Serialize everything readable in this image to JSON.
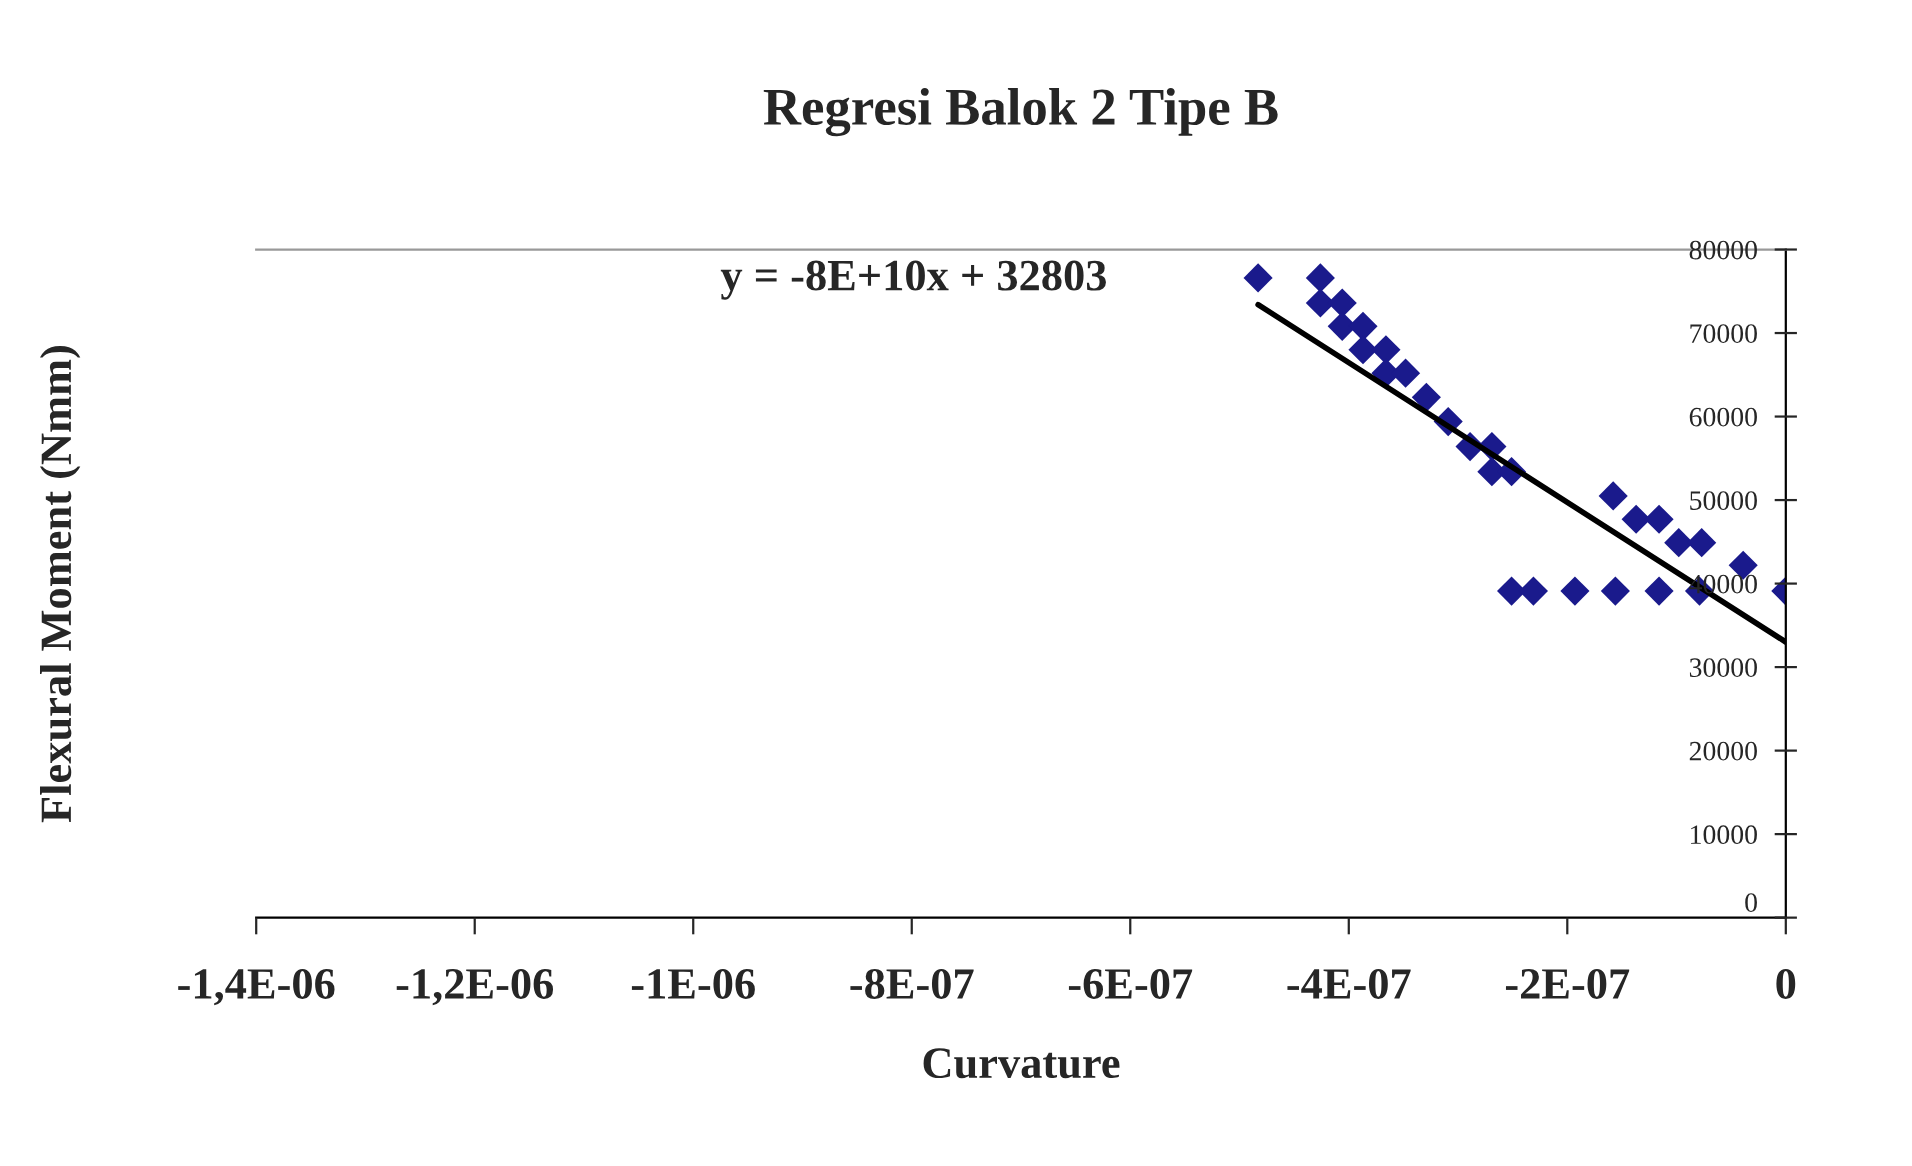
{
  "chart_data": {
    "type": "scatter",
    "title": "Regresi Balok 2 Tipe B",
    "xlabel": "Curvature",
    "ylabel": "Flexural Moment (Nmm)",
    "annotations": [
      "y = -8E+10x + 32803"
    ],
    "series": [
      {
        "color": "#1a1a8c",
        "marker": "diamond",
        "x": [
          -4.83e-07,
          -4.26e-07,
          -4.26e-07,
          -4.06e-07,
          -4.06e-07,
          -3.87e-07,
          -3.87e-07,
          -3.66e-07,
          -3.66e-07,
          -3.48e-07,
          -3.29e-07,
          -3.09e-07,
          -2.89e-07,
          -2.69e-07,
          -2.69e-07,
          -2.51e-07,
          -1.58e-07,
          -1.37e-07,
          -1.16e-07,
          -9.8e-08,
          -7.7e-08,
          -3.9e-08,
          -2.51e-07,
          -2.31e-07,
          -1.93e-07,
          -1.56e-07,
          -1.16e-07,
          -7.9e-08,
          0
        ],
        "values": [
          76600,
          76600,
          73600,
          73600,
          70800,
          70800,
          68000,
          68000,
          65200,
          65200,
          62300,
          59400,
          56400,
          56400,
          53400,
          53400,
          50500,
          47700,
          47700,
          44900,
          44900,
          42200,
          39100,
          39100,
          39100,
          39100,
          39100,
          39100,
          39100
        ]
      },
      {
        "type": "line",
        "color": "#000000",
        "line_style": "solid",
        "marker": "none",
        "x": [
          -4.83e-07,
          0
        ],
        "values": [
          73400,
          33000
        ]
      }
    ],
    "xlim": [
      -1.4e-06,
      0
    ],
    "xticks": [
      {
        "value": -1.4e-06,
        "label": "-1,4E-06"
      },
      {
        "value": -1.2e-06,
        "label": "-1,2E-06"
      },
      {
        "value": -1e-06,
        "label": "-1E-06"
      },
      {
        "value": -8e-07,
        "label": "-8E-07"
      },
      {
        "value": -6e-07,
        "label": "-6E-07"
      },
      {
        "value": -4e-07,
        "label": "-4E-07"
      },
      {
        "value": -2e-07,
        "label": "-2E-07"
      },
      {
        "value": 0,
        "label": "0"
      }
    ],
    "ylim": [
      0,
      80000
    ],
    "yticks": [
      0,
      10000,
      20000,
      30000,
      40000,
      50000,
      60000,
      70000,
      80000
    ],
    "grid": false,
    "legend": false
  }
}
